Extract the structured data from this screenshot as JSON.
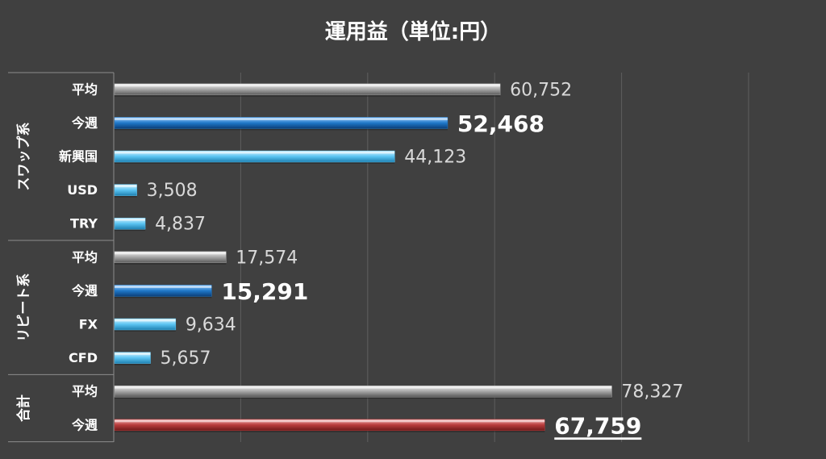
{
  "chart_data": {
    "type": "bar",
    "orientation": "horizontal",
    "title": "運用益（単位:円）",
    "xlim": [
      0,
      100000
    ],
    "grid": true,
    "groups": [
      {
        "label": "スワップ系",
        "rows": [
          {
            "label": "平均",
            "value": 60752,
            "value_label": "60,752",
            "style": "gray",
            "emphasis": "normal"
          },
          {
            "label": "今週",
            "value": 52468,
            "value_label": "52,468",
            "style": "blue",
            "emphasis": "bold"
          },
          {
            "label": "新興国",
            "value": 44123,
            "value_label": "44,123",
            "style": "lightblue",
            "emphasis": "normal"
          },
          {
            "label": "USD",
            "value": 3508,
            "value_label": "3,508",
            "style": "lightblue",
            "emphasis": "normal"
          },
          {
            "label": "TRY",
            "value": 4837,
            "value_label": "4,837",
            "style": "lightblue",
            "emphasis": "normal"
          }
        ]
      },
      {
        "label": "リピート系",
        "rows": [
          {
            "label": "平均",
            "value": 17574,
            "value_label": "17,574",
            "style": "gray",
            "emphasis": "normal"
          },
          {
            "label": "今週",
            "value": 15291,
            "value_label": "15,291",
            "style": "blue",
            "emphasis": "bold"
          },
          {
            "label": "FX",
            "value": 9634,
            "value_label": "9,634",
            "style": "lightblue",
            "emphasis": "normal"
          },
          {
            "label": "CFD",
            "value": 5657,
            "value_label": "5,657",
            "style": "lightblue",
            "emphasis": "normal"
          }
        ]
      },
      {
        "label": "合計",
        "rows": [
          {
            "label": "平均",
            "value": 78327,
            "value_label": "78,327",
            "style": "gray",
            "emphasis": "normal"
          },
          {
            "label": "今週",
            "value": 67759,
            "value_label": "67,759",
            "style": "red",
            "emphasis": "bold-underline"
          }
        ]
      }
    ]
  },
  "colors": {
    "background": "#404040",
    "gridline": "#5e5e5e",
    "gray": "#a6a6a6",
    "blue": "#1f78c8",
    "lightblue": "#5bc4f2",
    "red": "#b83c3c"
  }
}
